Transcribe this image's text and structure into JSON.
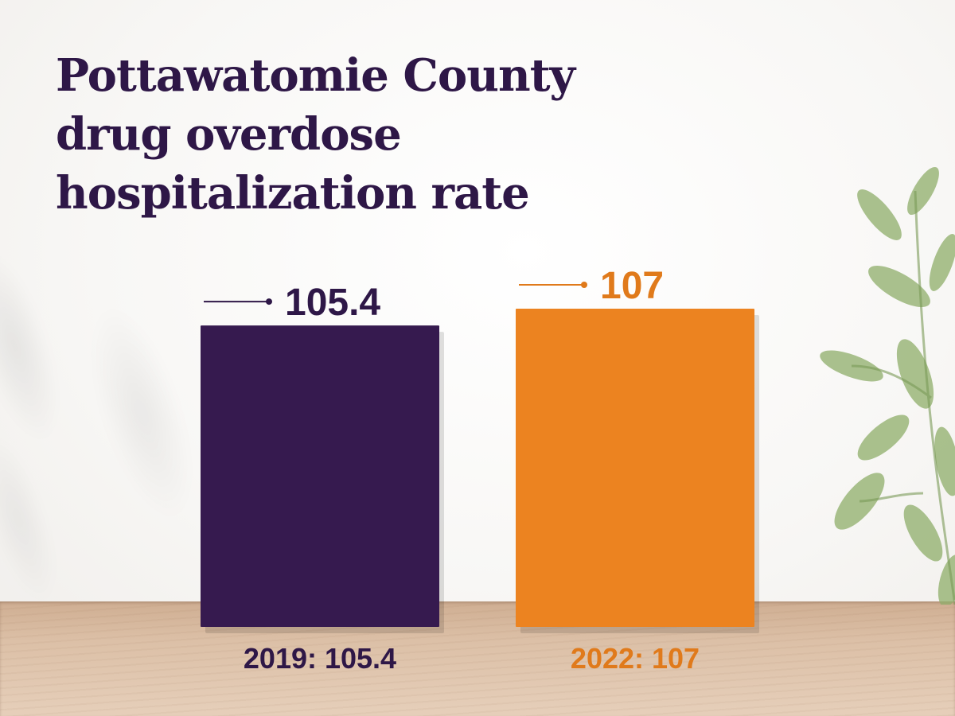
{
  "chart_data": {
    "type": "bar",
    "title_lines": [
      "Pottawatomie County",
      "drug overdose",
      "hospitalization rate"
    ],
    "categories": [
      "2019",
      "2022"
    ],
    "values": [
      105.4,
      107
    ],
    "value_labels": [
      "105.4",
      "107"
    ],
    "category_labels": [
      "2019: 105.4",
      "2022: 107"
    ],
    "colors": [
      "#361a4f",
      "#ec8320"
    ],
    "label_colors": [
      "#2e1747",
      "#e07a1b"
    ],
    "ylim": [
      0,
      107
    ],
    "grid": false,
    "legend": "none"
  },
  "background": {
    "plant_icon": "leafy-plant-icon",
    "table_icon": "wooden-table-icon"
  }
}
